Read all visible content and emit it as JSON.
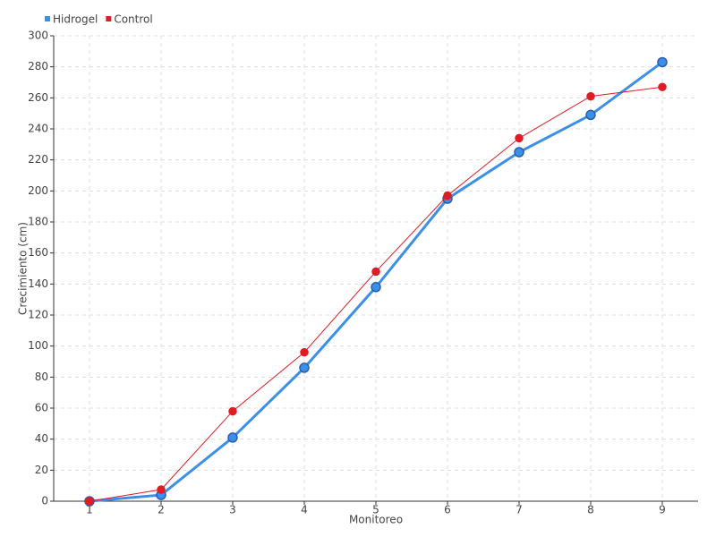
{
  "chart_data": {
    "type": "line",
    "x_label": "Monitoreo",
    "y_label": "Crecimiento (cm)",
    "categories": [
      "1",
      "2",
      "3",
      "4",
      "5",
      "6",
      "7",
      "8",
      "9"
    ],
    "series": [
      {
        "name": "Hidrogel",
        "color": "#3c8fe8",
        "values": [
          0,
          4,
          41,
          86,
          138,
          195,
          225,
          249,
          283
        ]
      },
      {
        "name": "Control",
        "color": "#e01b24",
        "values": [
          0,
          7.5,
          58,
          96,
          148,
          197,
          234,
          261,
          267
        ]
      }
    ],
    "ylim": [
      0,
      300
    ],
    "yticks": [
      0,
      20,
      40,
      60,
      80,
      100,
      120,
      140,
      160,
      180,
      200,
      220,
      240,
      260,
      280,
      300
    ],
    "grid": true,
    "legend": "top-left"
  }
}
